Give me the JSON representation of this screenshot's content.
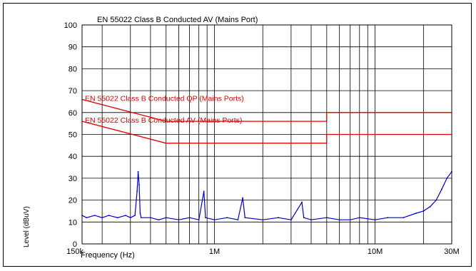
{
  "chart_data": {
    "type": "line",
    "title": "EN 55022 Class B Conducted AV (Mains Port)",
    "xlabel": "Frequency (Hz)",
    "ylabel": "Level (dBuV)",
    "x_scale": "log",
    "xlim": [
      150000,
      30000000
    ],
    "ylim": [
      0,
      100
    ],
    "y_ticks": [
      0,
      10,
      20,
      30,
      40,
      50,
      60,
      70,
      80,
      90,
      100
    ],
    "x_tick_labels": [
      {
        "value": 150000,
        "label": "150k"
      },
      {
        "value": 1000000,
        "label": "1M"
      },
      {
        "value": 10000000,
        "label": "10M"
      },
      {
        "value": 30000000,
        "label": "30M"
      }
    ],
    "grid": true,
    "colors": {
      "limit": "#e00000",
      "trace": "#0000c8",
      "grid": "#000000"
    },
    "limits": [
      {
        "name": "EN 55022 Class B Conducted QP (Mains Ports)",
        "points": [
          [
            150000,
            66
          ],
          [
            500000,
            56
          ],
          [
            5000000,
            56
          ],
          [
            5000000,
            60
          ],
          [
            30000000,
            60
          ]
        ]
      },
      {
        "name": "EN 55022 Class B Conducted AV (Mains Ports)",
        "points": [
          [
            150000,
            56
          ],
          [
            500000,
            46
          ],
          [
            5000000,
            46
          ],
          [
            5000000,
            50
          ],
          [
            30000000,
            50
          ]
        ]
      }
    ],
    "series": [
      {
        "values": [
          [
            150000,
            13
          ],
          [
            160000,
            12
          ],
          [
            180000,
            13
          ],
          [
            200000,
            12
          ],
          [
            220000,
            13
          ],
          [
            250000,
            12
          ],
          [
            280000,
            13
          ],
          [
            300000,
            12
          ],
          [
            320000,
            13
          ],
          [
            330000,
            24
          ],
          [
            335000,
            33
          ],
          [
            340000,
            27
          ],
          [
            345000,
            14
          ],
          [
            350000,
            12
          ],
          [
            400000,
            12
          ],
          [
            450000,
            11
          ],
          [
            500000,
            12
          ],
          [
            600000,
            11
          ],
          [
            700000,
            12
          ],
          [
            800000,
            11
          ],
          [
            860000,
            24
          ],
          [
            880000,
            12
          ],
          [
            1000000,
            11
          ],
          [
            1200000,
            12
          ],
          [
            1400000,
            11
          ],
          [
            1500000,
            21
          ],
          [
            1550000,
            12
          ],
          [
            2000000,
            11
          ],
          [
            2500000,
            12
          ],
          [
            3000000,
            11
          ],
          [
            3500000,
            19
          ],
          [
            3600000,
            12
          ],
          [
            4000000,
            11
          ],
          [
            5000000,
            12
          ],
          [
            6000000,
            11
          ],
          [
            7000000,
            11
          ],
          [
            8000000,
            12
          ],
          [
            10000000,
            11
          ],
          [
            12000000,
            12
          ],
          [
            15000000,
            12
          ],
          [
            18000000,
            14
          ],
          [
            20000000,
            15
          ],
          [
            22000000,
            17
          ],
          [
            24000000,
            20
          ],
          [
            26000000,
            25
          ],
          [
            28000000,
            30
          ],
          [
            30000000,
            33
          ]
        ]
      }
    ]
  }
}
